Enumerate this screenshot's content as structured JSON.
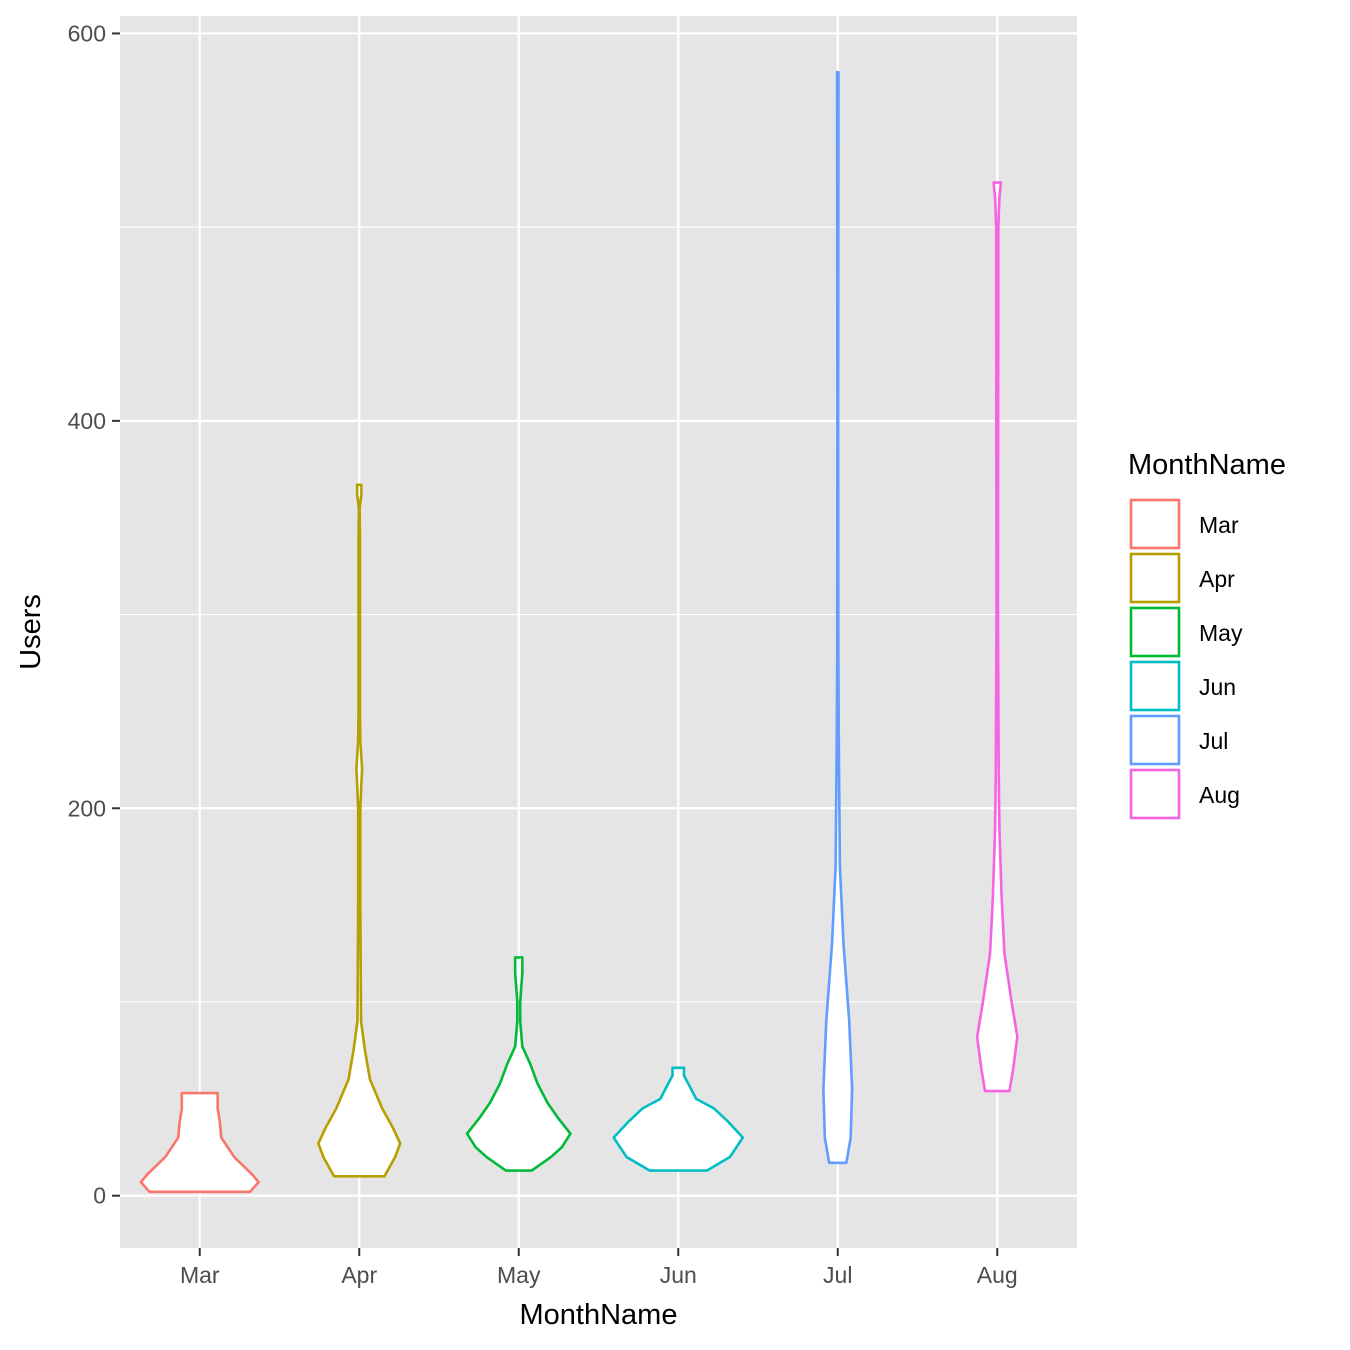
{
  "chart_data": {
    "type": "violin",
    "title": "",
    "xlabel": "MonthName",
    "ylabel": "Users",
    "ylim": [
      -27,
      609
    ],
    "y_ticks": [
      0,
      200,
      400,
      600
    ],
    "y_tick_labels": [
      "0",
      "200",
      "400",
      "600"
    ],
    "y_minor_gridlines": [
      100,
      300,
      500
    ],
    "grid": true,
    "background": "#e5e5e5",
    "legend": {
      "title": "MonthName",
      "position": "right"
    },
    "categories": [
      "Mar",
      "Apr",
      "May",
      "Jun",
      "Jul",
      "Aug"
    ],
    "series": [
      {
        "name": "Mar",
        "color": "#F8766D",
        "min": 2,
        "max": 53,
        "profile": [
          [
            2,
            0.7
          ],
          [
            7,
            0.82
          ],
          [
            11,
            0.73
          ],
          [
            20,
            0.48
          ],
          [
            30,
            0.3
          ],
          [
            38,
            0.28
          ],
          [
            45,
            0.25
          ],
          [
            53,
            0.25
          ]
        ]
      },
      {
        "name": "Apr",
        "color": "#B79F00",
        "min": 10,
        "max": 367,
        "profile": [
          [
            10,
            0.35
          ],
          [
            20,
            0.5
          ],
          [
            27,
            0.57
          ],
          [
            35,
            0.47
          ],
          [
            45,
            0.32
          ],
          [
            60,
            0.15
          ],
          [
            75,
            0.08
          ],
          [
            90,
            0.025
          ],
          [
            150,
            0.015
          ],
          [
            200,
            0.015
          ],
          [
            213,
            0.03
          ],
          [
            220,
            0.04
          ],
          [
            235,
            0.015
          ],
          [
            250,
            0.01
          ],
          [
            340,
            0.01
          ],
          [
            355,
            0.005
          ],
          [
            362,
            0.03
          ],
          [
            367,
            0.03
          ]
        ]
      },
      {
        "name": "May",
        "color": "#00BA38",
        "min": 13,
        "max": 123,
        "profile": [
          [
            13,
            0.18
          ],
          [
            20,
            0.45
          ],
          [
            25,
            0.6
          ],
          [
            32,
            0.72
          ],
          [
            40,
            0.55
          ],
          [
            48,
            0.4
          ],
          [
            58,
            0.26
          ],
          [
            68,
            0.16
          ],
          [
            77,
            0.05
          ],
          [
            90,
            0.02
          ],
          [
            100,
            0.02
          ],
          [
            110,
            0.04
          ],
          [
            115,
            0.05
          ],
          [
            123,
            0.05
          ]
        ]
      },
      {
        "name": "Jun",
        "color": "#00BFC4",
        "min": 13,
        "max": 66,
        "profile": [
          [
            13,
            0.4
          ],
          [
            20,
            0.72
          ],
          [
            30,
            0.9
          ],
          [
            38,
            0.7
          ],
          [
            45,
            0.5
          ],
          [
            50,
            0.25
          ],
          [
            55,
            0.18
          ],
          [
            62,
            0.08
          ],
          [
            66,
            0.08
          ]
        ]
      },
      {
        "name": "Jul",
        "color": "#619CFF",
        "min": 17,
        "max": 580,
        "profile": [
          [
            17,
            0.12
          ],
          [
            30,
            0.18
          ],
          [
            55,
            0.2
          ],
          [
            90,
            0.16
          ],
          [
            130,
            0.08
          ],
          [
            170,
            0.03
          ],
          [
            230,
            0.015
          ],
          [
            280,
            0.008
          ],
          [
            400,
            0.005
          ],
          [
            580,
            0.01
          ]
        ]
      },
      {
        "name": "Aug",
        "color": "#F564E3",
        "min": 54,
        "max": 523,
        "profile": [
          [
            54,
            0.17
          ],
          [
            65,
            0.22
          ],
          [
            82,
            0.28
          ],
          [
            100,
            0.2
          ],
          [
            125,
            0.1
          ],
          [
            155,
            0.06
          ],
          [
            190,
            0.03
          ],
          [
            220,
            0.02
          ],
          [
            300,
            0.01
          ],
          [
            480,
            0.015
          ],
          [
            500,
            0.015
          ],
          [
            515,
            0.03
          ],
          [
            523,
            0.05
          ]
        ]
      }
    ]
  }
}
